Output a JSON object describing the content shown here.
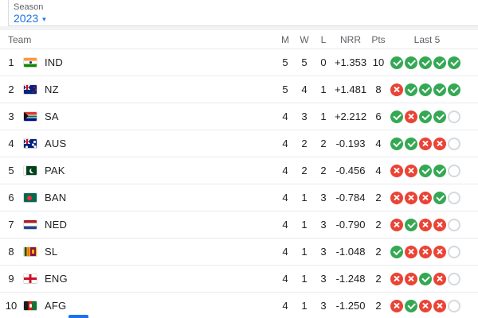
{
  "season": {
    "label": "Season",
    "value": "2023"
  },
  "table": {
    "headers": {
      "team": "Team",
      "m": "M",
      "w": "W",
      "l": "L",
      "nrr": "NRR",
      "pts": "Pts",
      "last5": "Last 5"
    },
    "rows": [
      {
        "rank": "1",
        "flag": "in",
        "team": "IND",
        "m": "5",
        "w": "5",
        "l": "0",
        "nrr": "+1.353",
        "pts": "10",
        "last5": [
          "W",
          "W",
          "W",
          "W",
          "W"
        ]
      },
      {
        "rank": "2",
        "flag": "nz",
        "team": "NZ",
        "m": "5",
        "w": "4",
        "l": "1",
        "nrr": "+1.481",
        "pts": "8",
        "last5": [
          "L",
          "W",
          "W",
          "W",
          "W"
        ]
      },
      {
        "rank": "3",
        "flag": "za",
        "team": "SA",
        "m": "4",
        "w": "3",
        "l": "1",
        "nrr": "+2.212",
        "pts": "6",
        "last5": [
          "W",
          "L",
          "W",
          "W",
          "N"
        ]
      },
      {
        "rank": "4",
        "flag": "au",
        "team": "AUS",
        "m": "4",
        "w": "2",
        "l": "2",
        "nrr": "-0.193",
        "pts": "4",
        "last5": [
          "W",
          "W",
          "L",
          "L",
          "N"
        ]
      },
      {
        "rank": "5",
        "flag": "pk",
        "team": "PAK",
        "m": "4",
        "w": "2",
        "l": "2",
        "nrr": "-0.456",
        "pts": "4",
        "last5": [
          "L",
          "L",
          "W",
          "W",
          "N"
        ]
      },
      {
        "rank": "6",
        "flag": "bd",
        "team": "BAN",
        "m": "4",
        "w": "1",
        "l": "3",
        "nrr": "-0.784",
        "pts": "2",
        "last5": [
          "L",
          "L",
          "L",
          "W",
          "N"
        ]
      },
      {
        "rank": "7",
        "flag": "nl",
        "team": "NED",
        "m": "4",
        "w": "1",
        "l": "3",
        "nrr": "-0.790",
        "pts": "2",
        "last5": [
          "L",
          "W",
          "L",
          "L",
          "N"
        ]
      },
      {
        "rank": "8",
        "flag": "lk",
        "team": "SL",
        "m": "4",
        "w": "1",
        "l": "3",
        "nrr": "-1.048",
        "pts": "2",
        "last5": [
          "W",
          "L",
          "L",
          "L",
          "N"
        ]
      },
      {
        "rank": "9",
        "flag": "eng",
        "team": "ENG",
        "m": "4",
        "w": "1",
        "l": "3",
        "nrr": "-1.248",
        "pts": "2",
        "last5": [
          "L",
          "L",
          "W",
          "L",
          "N"
        ]
      },
      {
        "rank": "10",
        "flag": "af",
        "team": "AFG",
        "m": "4",
        "w": "1",
        "l": "3",
        "nrr": "-1.250",
        "pts": "2",
        "last5": [
          "L",
          "W",
          "L",
          "L",
          "N"
        ]
      }
    ]
  },
  "icons": {
    "caret_down": "▾",
    "win_icon": "check-circle-green",
    "loss_icon": "x-circle-red",
    "not_played_icon": "empty-circle-gray"
  },
  "colors": {
    "accent_blue": "#1a73e8",
    "win_green": "#34a853",
    "loss_red": "#ea4335",
    "pending_gray": "#d5d9dd"
  }
}
